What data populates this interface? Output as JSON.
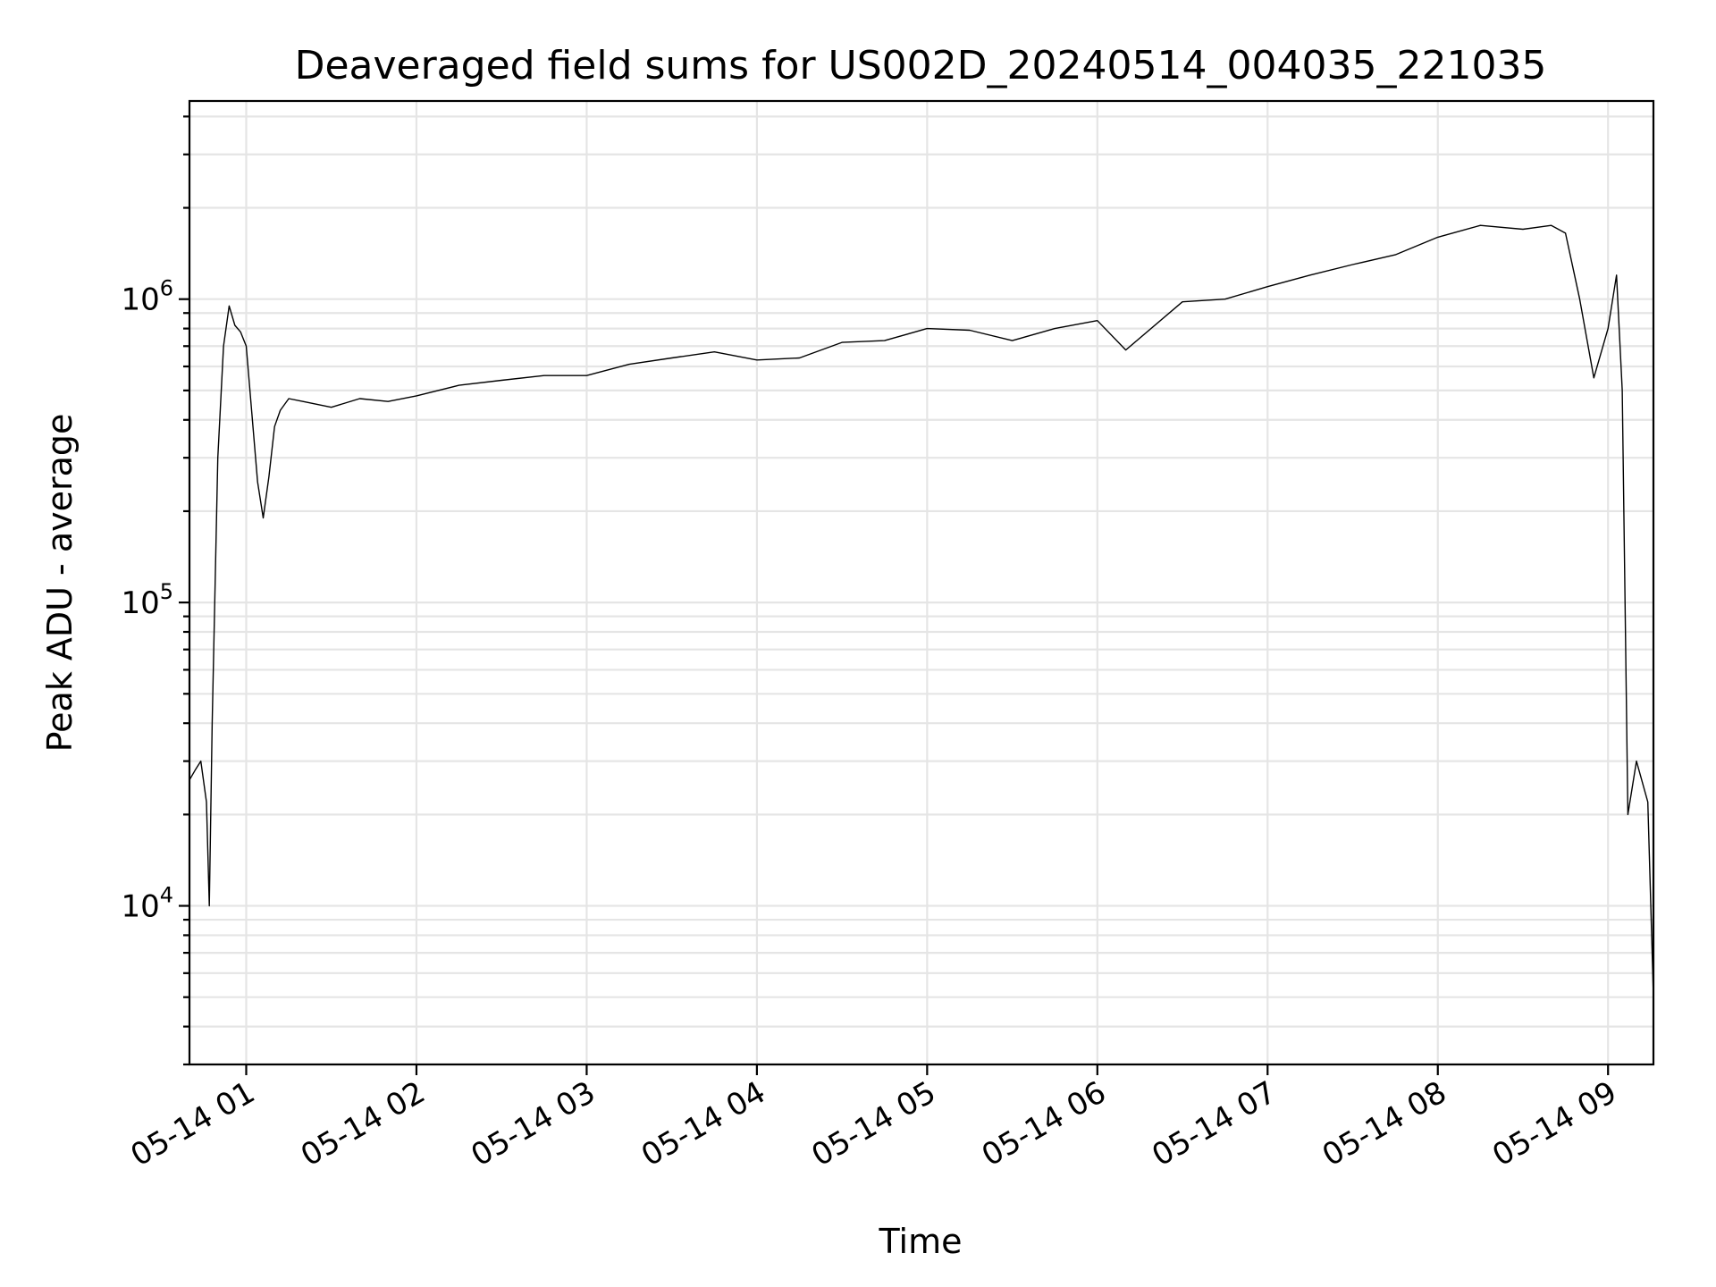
{
  "chart_data": {
    "type": "line",
    "title": "Deaveraged field sums for US002D_20240514_004035_221035",
    "xlabel": "Time",
    "ylabel": "Peak ADU - average",
    "y_scale": "log",
    "ylim": [
      3000,
      4500000
    ],
    "xlim": [
      "2024-05-14 00:40",
      "2024-05-14 09:16"
    ],
    "grid": true,
    "grid_minor": true,
    "x_tick_labels": [
      "05-14 01",
      "05-14 02",
      "05-14 03",
      "05-14 04",
      "05-14 05",
      "05-14 06",
      "05-14 07",
      "05-14 08",
      "05-14 09"
    ],
    "x_tick_times": [
      "2024-05-14 01:00",
      "2024-05-14 02:00",
      "2024-05-14 03:00",
      "2024-05-14 04:00",
      "2024-05-14 05:00",
      "2024-05-14 06:00",
      "2024-05-14 07:00",
      "2024-05-14 08:00",
      "2024-05-14 09:00"
    ],
    "y_ticks": [
      {
        "value": 10000,
        "base": "10",
        "exp": "4"
      },
      {
        "value": 100000,
        "base": "10",
        "exp": "5"
      },
      {
        "value": 1000000,
        "base": "10",
        "exp": "6"
      }
    ],
    "line_color": "#000000",
    "series": [
      {
        "x": [
          "2024-05-14 00:40",
          "2024-05-14 00:42",
          "2024-05-14 00:44",
          "2024-05-14 00:46",
          "2024-05-14 00:47",
          "2024-05-14 00:48",
          "2024-05-14 00:50",
          "2024-05-14 00:52",
          "2024-05-14 00:54",
          "2024-05-14 00:56",
          "2024-05-14 00:58",
          "2024-05-14 01:00",
          "2024-05-14 01:02",
          "2024-05-14 01:04",
          "2024-05-14 01:06",
          "2024-05-14 01:08",
          "2024-05-14 01:10",
          "2024-05-14 01:12",
          "2024-05-14 01:15",
          "2024-05-14 01:20",
          "2024-05-14 01:30",
          "2024-05-14 01:40",
          "2024-05-14 01:50",
          "2024-05-14 02:00",
          "2024-05-14 02:15",
          "2024-05-14 02:30",
          "2024-05-14 02:45",
          "2024-05-14 03:00",
          "2024-05-14 03:15",
          "2024-05-14 03:30",
          "2024-05-14 03:45",
          "2024-05-14 04:00",
          "2024-05-14 04:15",
          "2024-05-14 04:30",
          "2024-05-14 04:45",
          "2024-05-14 05:00",
          "2024-05-14 05:15",
          "2024-05-14 05:30",
          "2024-05-14 05:45",
          "2024-05-14 06:00",
          "2024-05-14 06:10",
          "2024-05-14 06:30",
          "2024-05-14 06:45",
          "2024-05-14 07:00",
          "2024-05-14 07:15",
          "2024-05-14 07:30",
          "2024-05-14 07:45",
          "2024-05-14 08:00",
          "2024-05-14 08:15",
          "2024-05-14 08:30",
          "2024-05-14 08:40",
          "2024-05-14 08:45",
          "2024-05-14 08:50",
          "2024-05-14 08:55",
          "2024-05-14 09:00",
          "2024-05-14 09:03",
          "2024-05-14 09:05",
          "2024-05-14 09:07",
          "2024-05-14 09:10",
          "2024-05-14 09:14",
          "2024-05-14 09:16"
        ],
        "y": [
          26000,
          28000,
          30000,
          22000,
          10000,
          40000,
          300000,
          700000,
          950000,
          820000,
          780000,
          700000,
          420000,
          250000,
          190000,
          260000,
          380000,
          430000,
          470000,
          460000,
          440000,
          470000,
          460000,
          480000,
          520000,
          540000,
          560000,
          560000,
          610000,
          640000,
          670000,
          630000,
          640000,
          720000,
          730000,
          800000,
          790000,
          730000,
          800000,
          850000,
          680000,
          980000,
          1000000,
          1100000,
          1200000,
          1300000,
          1400000,
          1600000,
          1750000,
          1700000,
          1750000,
          1650000,
          1000000,
          550000,
          800000,
          1200000,
          500000,
          20000,
          30000,
          22000,
          5000
        ]
      }
    ]
  }
}
